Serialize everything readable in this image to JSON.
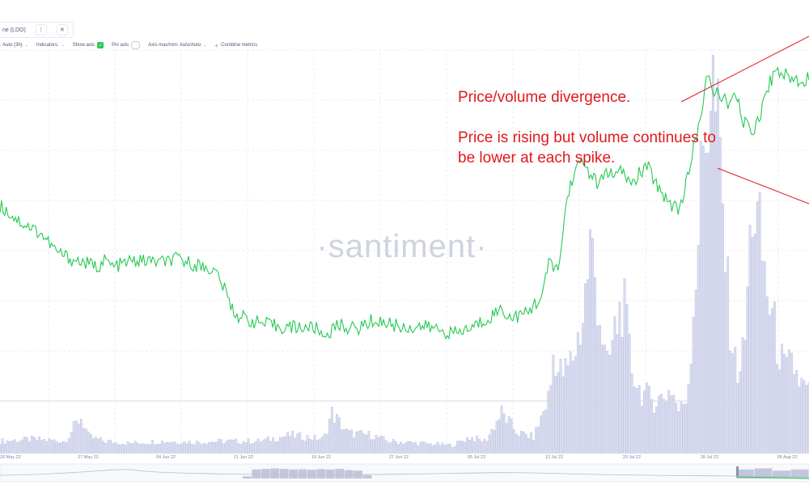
{
  "tab": {
    "title": "ne (LDO)",
    "menu_icon": "⋮",
    "close_icon": "✕"
  },
  "toolbar": {
    "interval": ": Auto (3h)",
    "indicators": "Indicators:",
    "show_axis": "Show axis",
    "pin_axis": "Pin axis",
    "axis_maxmin": "Axis max/min: Auto/Auto",
    "combine": "Combine metrics"
  },
  "watermark": "·santiment·",
  "annotation": {
    "line1": "Price/volume divergence.",
    "line2": "Price is rising but volume continues to be lower at each spike."
  },
  "colors": {
    "price": "#26c953",
    "volume_fill": "#d9dcf0",
    "volume_stroke": "#aab0d6",
    "annotation": "#e0191c",
    "grid": "#ebedf3"
  },
  "chart_data": {
    "type": "line",
    "x_ticks": [
      "20 May 22",
      "27 May 22",
      "04 Jun 22",
      "11 Jun 22",
      "19 Jun 22",
      "27 Jun 22",
      "05 Jul 22",
      "12 Jul 22",
      "20 Jul 22",
      "28 Jul 22",
      "05 Aug 22"
    ],
    "series": [
      {
        "kind": "line",
        "points": [
          [
            0,
            0.612
          ],
          [
            2.5,
            0.572
          ],
          [
            5,
            0.545
          ],
          [
            7,
            0.498
          ],
          [
            9,
            0.478
          ],
          [
            11,
            0.468
          ],
          [
            12,
            0.46
          ],
          [
            13,
            0.478
          ],
          [
            14,
            0.46
          ],
          [
            16,
            0.474
          ],
          [
            18,
            0.476
          ],
          [
            20,
            0.472
          ],
          [
            22,
            0.48
          ],
          [
            24,
            0.467
          ],
          [
            26,
            0.456
          ],
          [
            27,
            0.44
          ],
          [
            29,
            0.345
          ],
          [
            31,
            0.328
          ],
          [
            33,
            0.318
          ],
          [
            35,
            0.312
          ],
          [
            37,
            0.312
          ],
          [
            39,
            0.31
          ],
          [
            40,
            0.29
          ],
          [
            42,
            0.318
          ],
          [
            44,
            0.306
          ],
          [
            46,
            0.328
          ],
          [
            48,
            0.322
          ],
          [
            50,
            0.31
          ],
          [
            52,
            0.314
          ],
          [
            54,
            0.308
          ],
          [
            56,
            0.295
          ],
          [
            58,
            0.308
          ],
          [
            60,
            0.33
          ],
          [
            62,
            0.358
          ],
          [
            63,
            0.336
          ],
          [
            65,
            0.344
          ],
          [
            67,
            0.39
          ],
          [
            68,
            0.48
          ],
          [
            69,
            0.445
          ],
          [
            70,
            0.62
          ],
          [
            71,
            0.7
          ],
          [
            72,
            0.72
          ],
          [
            73,
            0.69
          ],
          [
            74,
            0.66
          ],
          [
            75,
            0.7
          ],
          [
            76,
            0.68
          ],
          [
            77,
            0.7
          ],
          [
            78,
            0.66
          ],
          [
            79,
            0.69
          ],
          [
            80,
            0.71
          ],
          [
            81,
            0.67
          ],
          [
            82,
            0.64
          ],
          [
            83,
            0.615
          ],
          [
            84,
            0.605
          ],
          [
            85,
            0.68
          ],
          [
            86,
            0.78
          ],
          [
            87,
            0.87
          ],
          [
            87.5,
            0.945
          ],
          [
            88,
            0.89
          ],
          [
            89,
            0.89
          ],
          [
            90,
            0.86
          ],
          [
            91,
            0.88
          ],
          [
            92,
            0.815
          ],
          [
            93,
            0.795
          ],
          [
            94,
            0.84
          ],
          [
            95,
            0.91
          ],
          [
            96,
            0.95
          ],
          [
            97,
            0.935
          ],
          [
            98,
            0.925
          ],
          [
            99,
            0.92
          ],
          [
            100,
            0.93
          ]
        ]
      },
      {
        "kind": "volume",
        "points": [
          [
            0,
            0.03
          ],
          [
            4,
            0.035
          ],
          [
            8,
            0.03
          ],
          [
            10,
            0.09
          ],
          [
            11,
            0.04
          ],
          [
            13,
            0.03
          ],
          [
            16,
            0.025
          ],
          [
            20,
            0.03
          ],
          [
            24,
            0.028
          ],
          [
            28,
            0.03
          ],
          [
            32,
            0.03
          ],
          [
            36,
            0.045
          ],
          [
            40,
            0.035
          ],
          [
            41,
            0.1
          ],
          [
            43,
            0.05
          ],
          [
            46,
            0.045
          ],
          [
            48,
            0.03
          ],
          [
            52,
            0.025
          ],
          [
            56,
            0.02
          ],
          [
            58,
            0.04
          ],
          [
            60,
            0.03
          ],
          [
            62,
            0.1
          ],
          [
            64,
            0.05
          ],
          [
            66,
            0.04
          ],
          [
            68,
            0.15
          ],
          [
            68.5,
            0.27
          ],
          [
            69,
            0.2
          ],
          [
            70,
            0.2
          ],
          [
            71,
            0.25
          ],
          [
            72,
            0.33
          ],
          [
            73,
            0.52
          ],
          [
            74,
            0.37
          ],
          [
            75,
            0.2
          ],
          [
            76,
            0.3
          ],
          [
            77,
            0.38
          ],
          [
            78,
            0.22
          ],
          [
            79,
            0.16
          ],
          [
            80,
            0.14
          ],
          [
            81,
            0.13
          ],
          [
            82,
            0.14
          ],
          [
            83,
            0.16
          ],
          [
            84,
            0.1
          ],
          [
            85,
            0.15
          ],
          [
            86,
            0.45
          ],
          [
            87,
            0.77
          ],
          [
            88,
            0.93
          ],
          [
            89,
            0.72
          ],
          [
            90,
            0.38
          ],
          [
            91,
            0.2
          ],
          [
            92,
            0.25
          ],
          [
            93,
            0.62
          ],
          [
            94,
            0.52
          ],
          [
            95,
            0.38
          ],
          [
            96,
            0.28
          ],
          [
            97,
            0.2
          ],
          [
            98,
            0.22
          ],
          [
            99,
            0.17
          ],
          [
            100,
            0.15
          ]
        ]
      }
    ],
    "navigator_volume": [
      0.2,
      0.8,
      0.85,
      0.9,
      0.85,
      0.8,
      0.82,
      0.78,
      0.84,
      0.8,
      0.86,
      0.75,
      0.7,
      0.3,
      0.2,
      0.1,
      0.05,
      0.05,
      0.04,
      0.03,
      0.03,
      0.8,
      0.9,
      0.7,
      0.8
    ],
    "grid": true
  }
}
